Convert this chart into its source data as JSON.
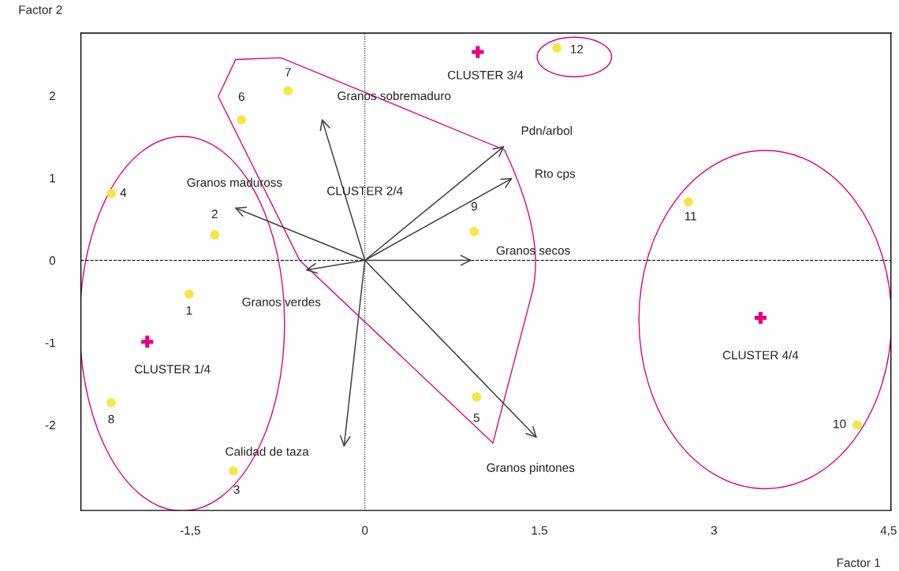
{
  "chart_data": {
    "type": "scatter",
    "xlabel": "Factor 1",
    "ylabel": "Factor 2",
    "xlim": [
      -2.44,
      4.52
    ],
    "ylim": [
      -3.04,
      2.76
    ],
    "xticks": [
      {
        "value": -1.5,
        "label": "-1,5"
      },
      0,
      1.5,
      3,
      {
        "value": 4.5,
        "label": "4,5"
      }
    ],
    "yticks": [
      2,
      1,
      0,
      -1,
      -2
    ],
    "grid": false,
    "ref_lines": [
      {
        "axis": "x",
        "value": 0,
        "line_style": "dotted",
        "color": "#000000"
      },
      {
        "axis": "y",
        "value": 0,
        "line_style": "dashed",
        "color": "#000000"
      }
    ],
    "annotations": [
      {
        "text": "1",
        "x": -1.51,
        "y": -0.41
      },
      {
        "text": "2",
        "x": -1.29,
        "y": 0.31
      },
      {
        "text": "3",
        "x": -1.13,
        "y": -2.56
      },
      {
        "text": "4",
        "x": -2.18,
        "y": 0.81
      },
      {
        "text": "5",
        "x": 0.96,
        "y": -1.66
      },
      {
        "text": "6",
        "x": -1.06,
        "y": 1.71
      },
      {
        "text": "7",
        "x": -0.66,
        "y": 2.06
      },
      {
        "text": "8",
        "x": -2.18,
        "y": -1.73
      },
      {
        "text": "9",
        "x": 0.94,
        "y": 0.35
      },
      {
        "text": "10",
        "x": 4.23,
        "y": -2.0
      },
      {
        "text": "11",
        "x": 2.78,
        "y": 0.71
      },
      {
        "text": "12",
        "x": 1.65,
        "y": 2.58
      },
      {
        "text": "CLUSTER 1/4",
        "x": -1.87,
        "y": -0.99
      },
      {
        "text": "CLUSTER 3/4",
        "x": 0.97,
        "y": 2.53
      },
      {
        "text": "CLUSTER 4/4",
        "x": 3.4,
        "y": -0.7
      },
      "CLUSTER 2/4",
      "Granos sobremaduro",
      "Pdn/arbol",
      "Rto cps",
      "Granos maduross",
      "Granos secos",
      "Granos verdes",
      "Calidad de taza",
      "Granos pintones"
    ],
    "series": [
      {
        "color": "#f5e642",
        "marker": "circle",
        "x": [
          -1.51,
          -1.29,
          -1.13,
          -2.18,
          0.96,
          -1.06,
          -0.66,
          -2.18,
          0.94,
          4.23,
          2.78,
          1.65
        ],
        "values": [
          -0.41,
          0.31,
          -2.56,
          0.81,
          -1.66,
          1.71,
          2.06,
          -1.73,
          0.35,
          -2.0,
          0.71,
          2.58
        ]
      },
      {
        "color": "#e6007e",
        "marker": "cross",
        "x": [
          -1.87,
          0.97,
          3.4
        ],
        "values": [
          -0.99,
          2.53,
          -0.7
        ]
      }
    ]
  }
}
